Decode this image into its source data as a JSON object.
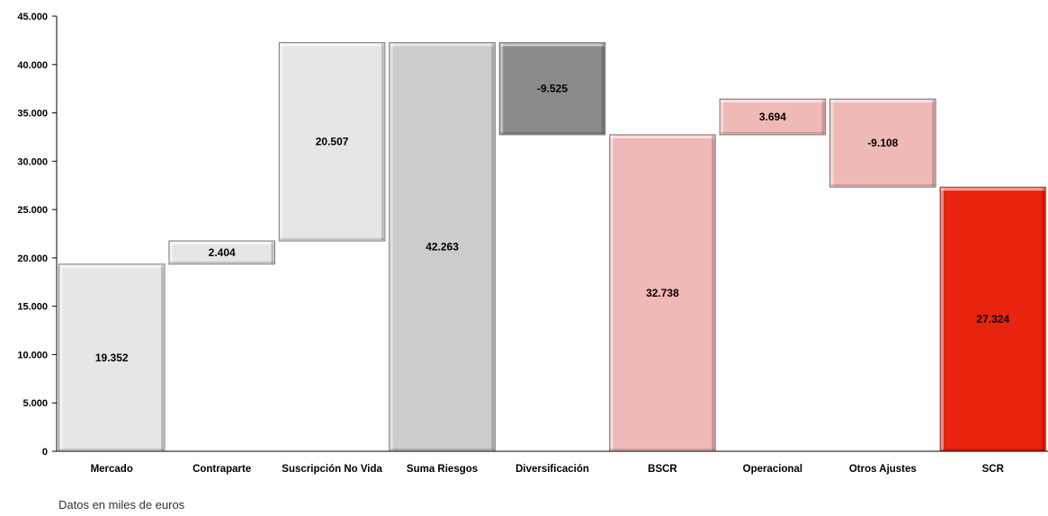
{
  "chart_data": {
    "type": "bar",
    "subtype": "waterfall",
    "categories": [
      "Mercado",
      "Contraparte",
      "Suscripción No Vida",
      "Suma Riesgos",
      "Diversificación",
      "BSCR",
      "Operacional",
      "Otros Ajustes",
      "SCR"
    ],
    "bars": [
      {
        "base": 0,
        "top": 19352,
        "label": "19.352",
        "color": "#e6e6e6"
      },
      {
        "base": 19352,
        "top": 21756,
        "label": "2.404",
        "color": "#e6e6e6"
      },
      {
        "base": 21756,
        "top": 42263,
        "label": "20.507",
        "color": "#e6e6e6"
      },
      {
        "base": 0,
        "top": 42263,
        "label": "42.263",
        "color": "#cccccc"
      },
      {
        "base": 32738,
        "top": 42263,
        "label": "-9.525",
        "color": "#8a8a8a"
      },
      {
        "base": 0,
        "top": 32738,
        "label": "32.738",
        "color": "#efb9b6"
      },
      {
        "base": 32738,
        "top": 36432,
        "label": "3.694",
        "color": "#efb9b6"
      },
      {
        "base": 27324,
        "top": 36432,
        "label": "-9.108",
        "color": "#efb9b6"
      },
      {
        "base": 0,
        "top": 27324,
        "label": "27.324",
        "color": "#e8230e"
      }
    ],
    "yticks": [
      "0",
      "5.000",
      "10.000",
      "15.000",
      "20.000",
      "25.000",
      "30.000",
      "35.000",
      "40.000",
      "45.000"
    ],
    "ylim": [
      0,
      45000
    ],
    "grid": false,
    "legend": "none"
  },
  "footnote": "Datos en miles de euros"
}
